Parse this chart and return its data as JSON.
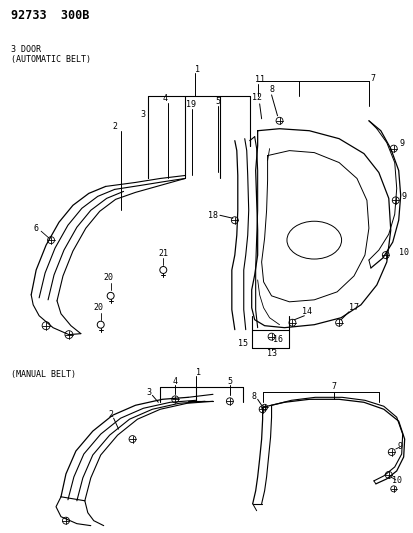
{
  "title": "92733  300B",
  "section1_label": "3 DOOR",
  "section1_sublabel": "(AUTOMATIC BELT)",
  "section2_label": "(MANUAL BELT)",
  "bg_color": "#ffffff",
  "line_color": "#000000",
  "text_color": "#000000",
  "fig_width": 4.14,
  "fig_height": 5.33,
  "dpi": 100
}
